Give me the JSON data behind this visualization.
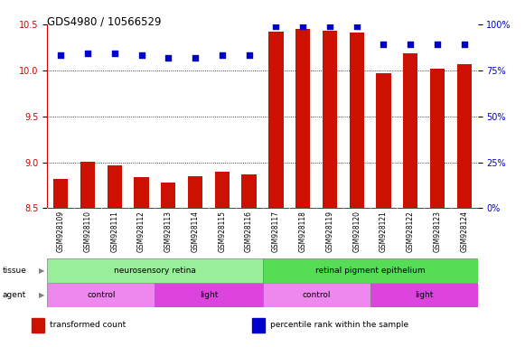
{
  "title": "GDS4980 / 10566529",
  "samples": [
    "GSM928109",
    "GSM928110",
    "GSM928111",
    "GSM928112",
    "GSM928113",
    "GSM928114",
    "GSM928115",
    "GSM928116",
    "GSM928117",
    "GSM928118",
    "GSM928119",
    "GSM928120",
    "GSM928121",
    "GSM928122",
    "GSM928123",
    "GSM928124"
  ],
  "bar_values": [
    8.82,
    9.01,
    8.97,
    8.84,
    8.78,
    8.85,
    8.9,
    8.87,
    10.42,
    10.45,
    10.43,
    10.41,
    9.97,
    10.18,
    10.02,
    10.07
  ],
  "percentile_values": [
    83,
    84,
    84,
    83,
    82,
    82,
    83,
    83,
    99,
    99,
    99,
    99,
    89,
    89,
    89,
    89
  ],
  "ylim_left": [
    8.5,
    10.5
  ],
  "ylim_right": [
    0,
    100
  ],
  "yticks_left": [
    8.5,
    9.0,
    9.5,
    10.0,
    10.5
  ],
  "yticks_right": [
    0,
    25,
    50,
    75,
    100
  ],
  "bar_color": "#cc1100",
  "dot_color": "#0000cc",
  "tissue_groups": [
    {
      "label": "neurosensory retina",
      "start": 0,
      "end": 8,
      "color": "#99ee99"
    },
    {
      "label": "retinal pigment epithelium",
      "start": 8,
      "end": 16,
      "color": "#55dd55"
    }
  ],
  "agent_groups": [
    {
      "label": "control",
      "start": 0,
      "end": 4,
      "color": "#ee88ee"
    },
    {
      "label": "light",
      "start": 4,
      "end": 8,
      "color": "#dd44dd"
    },
    {
      "label": "control",
      "start": 8,
      "end": 12,
      "color": "#ee88ee"
    },
    {
      "label": "light",
      "start": 12,
      "end": 16,
      "color": "#dd44dd"
    }
  ],
  "xlabel_color": "#cc0000",
  "ylabel_right_color": "#0000cc",
  "legend_items": [
    {
      "label": "transformed count",
      "color": "#cc1100"
    },
    {
      "label": "percentile rank within the sample",
      "color": "#0000cc"
    }
  ],
  "gridline_y": [
    9.0,
    9.5,
    10.0
  ],
  "bar_width": 0.55,
  "dot_size": 18
}
